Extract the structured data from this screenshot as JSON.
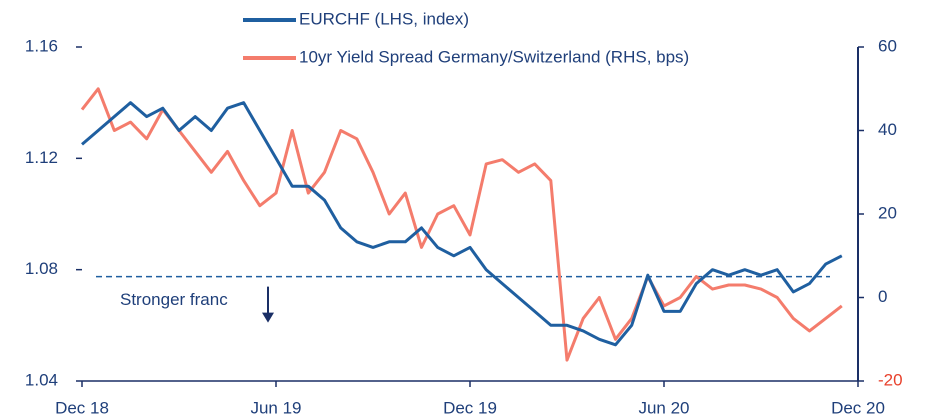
{
  "chart_data": {
    "type": "line",
    "x": [
      0,
      0.5,
      1,
      1.5,
      2,
      2.5,
      3,
      3.5,
      4,
      4.5,
      5,
      5.5,
      6,
      6.5,
      7,
      7.5,
      8,
      8.5,
      9,
      9.5,
      10,
      10.5,
      11,
      11.5,
      12,
      12.5,
      13,
      13.5,
      14,
      14.5,
      15,
      15.5,
      16,
      16.5,
      17,
      17.5,
      18,
      18.5,
      19,
      19.5,
      20,
      20.5,
      21,
      21.5,
      22,
      22.5,
      23,
      23.5
    ],
    "xlim": [
      0,
      24
    ],
    "xticks": [
      {
        "value": 0,
        "label": "Dec 18"
      },
      {
        "value": 6,
        "label": "Jun 19"
      },
      {
        "value": 12,
        "label": "Dec 19"
      },
      {
        "value": 18,
        "label": "Jun 20"
      },
      {
        "value": 24,
        "label": "Dec 20"
      }
    ],
    "ylim": [
      1.04,
      1.16
    ],
    "yticks": [
      1.04,
      1.08,
      1.12,
      1.16
    ],
    "y2lim": [
      -20,
      60
    ],
    "y2ticks": [
      -20,
      0,
      20,
      40,
      60
    ],
    "series": [
      {
        "name": "EURCHF (LHS, index)",
        "color": "#1f5fa0",
        "values": [
          1.125,
          1.13,
          1.135,
          1.14,
          1.135,
          1.138,
          1.13,
          1.135,
          1.13,
          1.138,
          1.14,
          1.13,
          1.12,
          1.11,
          1.11,
          1.105,
          1.095,
          1.09,
          1.088,
          1.09,
          1.09,
          1.095,
          1.088,
          1.085,
          1.088,
          1.08,
          1.075,
          1.07,
          1.065,
          1.06,
          1.06,
          1.058,
          1.055,
          1.053,
          1.06,
          1.078,
          1.065,
          1.065,
          1.075,
          1.08,
          1.078,
          1.08,
          1.078,
          1.08,
          1.072,
          1.075,
          1.082,
          1.085
        ]
      },
      {
        "name": "10yr Yield Spread Germany/Switzerland (RHS, bps)",
        "color": "#f47c6c",
        "axis": "y2",
        "values": [
          45,
          50,
          40,
          42,
          38,
          45,
          40,
          35,
          30,
          35,
          28,
          22,
          25,
          40,
          25,
          30,
          40,
          38,
          30,
          20,
          25,
          12,
          20,
          22,
          15,
          32,
          33,
          30,
          32,
          28,
          -15,
          -5,
          0,
          -10,
          -5,
          5,
          -2,
          0,
          5,
          2,
          3,
          3,
          2,
          0,
          -5,
          -8,
          -5,
          -2
        ]
      }
    ],
    "annotations": [
      {
        "text": "Stronger franc",
        "value": 1.0775
      }
    ]
  }
}
